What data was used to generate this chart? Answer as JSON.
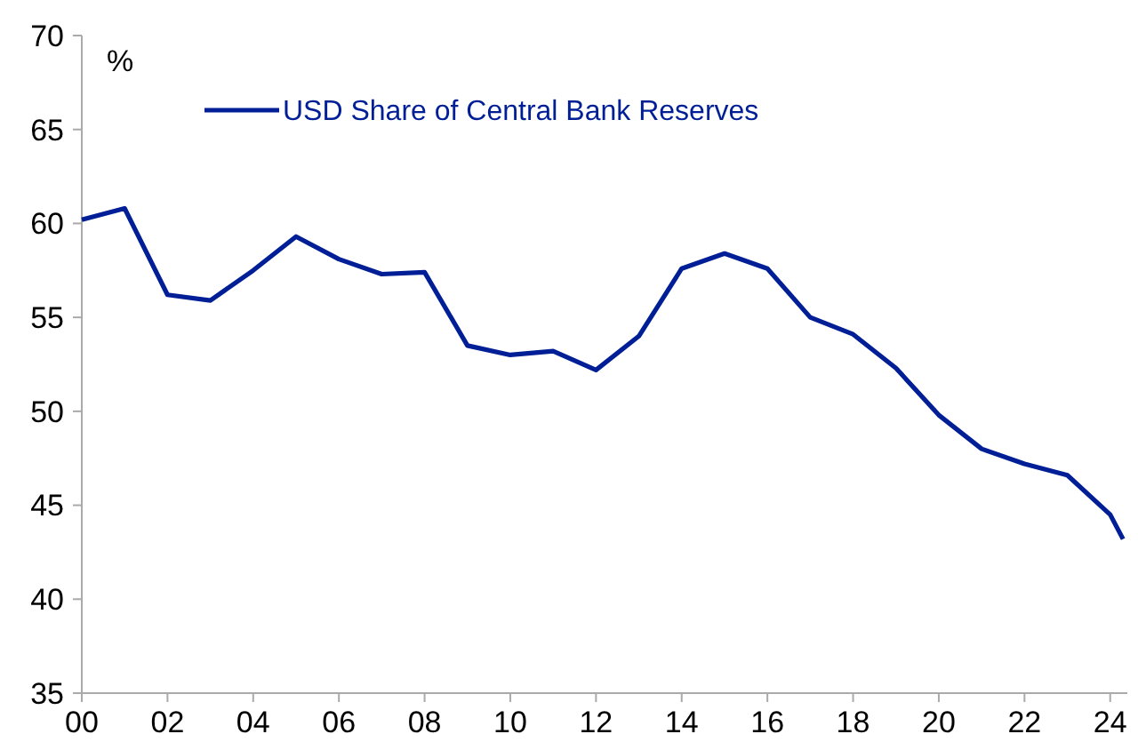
{
  "chart_data": {
    "type": "line",
    "ylabel": "%",
    "x": [
      2000,
      2001,
      2002,
      2003,
      2004,
      2005,
      2006,
      2007,
      2008,
      2009,
      2010,
      2011,
      2012,
      2013,
      2014,
      2015,
      2016,
      2017,
      2018,
      2019,
      2020,
      2021,
      2022,
      2023,
      2024,
      2024.3
    ],
    "series": [
      {
        "name": "USD Share of Central Bank Reserves",
        "color": "#001e96",
        "values": [
          60.2,
          60.8,
          56.2,
          55.9,
          57.5,
          59.3,
          58.1,
          57.3,
          57.4,
          53.5,
          53.0,
          53.2,
          52.2,
          54.0,
          57.6,
          58.4,
          57.6,
          55.0,
          54.1,
          52.3,
          49.8,
          48.0,
          47.2,
          46.6,
          44.5,
          43.2
        ]
      }
    ],
    "xlim": [
      2000,
      2024.4
    ],
    "xticks": [
      {
        "value": 2000,
        "label": "00"
      },
      {
        "value": 2002,
        "label": "02"
      },
      {
        "value": 2004,
        "label": "04"
      },
      {
        "value": 2006,
        "label": "06"
      },
      {
        "value": 2008,
        "label": "08"
      },
      {
        "value": 2010,
        "label": "10"
      },
      {
        "value": 2012,
        "label": "12"
      },
      {
        "value": 2014,
        "label": "14"
      },
      {
        "value": 2016,
        "label": "16"
      },
      {
        "value": 2018,
        "label": "18"
      },
      {
        "value": 2020,
        "label": "20"
      },
      {
        "value": 2022,
        "label": "22"
      },
      {
        "value": 2024,
        "label": "24"
      }
    ],
    "ylim": [
      35,
      70
    ],
    "yticks": [
      35,
      40,
      45,
      50,
      55,
      60,
      65,
      70
    ],
    "legend": "top left",
    "grid": false,
    "marker": "none",
    "line_style": "solid"
  }
}
